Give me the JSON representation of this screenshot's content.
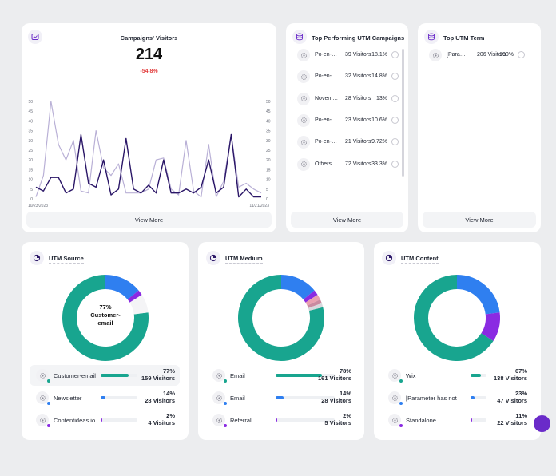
{
  "colors": {
    "accent": "#6a2bc9",
    "teal": "#18a58f",
    "blue": "#2f7ff0",
    "purple": "#8a2be2",
    "negative": "#e23b3b",
    "line_dark": "#2a1667",
    "line_light": "#b9b0d6"
  },
  "campaign_visitors": {
    "title": "Campaigns' Visitors",
    "total": "214",
    "change": "-54.8%",
    "icon": "chart-icon",
    "y_ticks_left": [
      "50",
      "45",
      "40",
      "35",
      "30",
      "25",
      "20",
      "15",
      "10",
      "5",
      "0"
    ],
    "y_ticks_right": [
      "50",
      "45",
      "40",
      "35",
      "30",
      "25",
      "20",
      "15",
      "10",
      "5",
      "0"
    ],
    "x_start_label": "10/23/2023",
    "x_end_label": "11/21/2023",
    "view_more": "View More"
  },
  "chart_data": {
    "type": "line",
    "x_start": "10/23/2023",
    "x_end": "11/21/2023",
    "ylim": [
      0,
      50
    ],
    "grid": false,
    "series": [
      {
        "values": [
          6,
          4,
          11,
          11,
          3,
          5,
          33,
          8,
          6,
          20,
          2,
          5,
          31,
          5,
          3,
          7,
          3,
          20,
          3,
          3,
          5,
          3,
          6,
          20,
          3,
          6,
          33,
          1,
          5,
          1,
          1
        ]
      },
      {
        "values": [
          1,
          12,
          50,
          28,
          20,
          30,
          4,
          3,
          35,
          16,
          12,
          18,
          3,
          3,
          3,
          5,
          20,
          21,
          5,
          2,
          30,
          4,
          1,
          28,
          1,
          9,
          33,
          6,
          8,
          5,
          3
        ]
      }
    ]
  },
  "top_utm_campaigns": {
    "title": "Top Performing UTM Campaigns",
    "icon": "database-icon",
    "rows": [
      {
        "name": "Po-en-…",
        "visitors": "39 Visitors",
        "pct": "18.1%"
      },
      {
        "name": "Po-en-…",
        "visitors": "32 Visitors",
        "pct": "14.8%"
      },
      {
        "name": "Novem…",
        "visitors": "28 Visitors",
        "pct": "13%"
      },
      {
        "name": "Po-en-…",
        "visitors": "23 Visitors",
        "pct": "10.6%"
      },
      {
        "name": "Po-en-…",
        "visitors": "21 Visitors",
        "pct": "9.72%"
      },
      {
        "name": "Others",
        "visitors": "72 Visitors",
        "pct": "33.3%"
      }
    ],
    "view_more": "View More"
  },
  "top_utm_term": {
    "title": "Top UTM Term",
    "icon": "database-icon",
    "rows": [
      {
        "name": "[Para…",
        "visitors": "206 Visitors",
        "pct": "100%"
      }
    ],
    "view_more": "View More"
  },
  "utm_source": {
    "title": "UTM Source",
    "icon": "pie-icon",
    "center_pct": "77%",
    "center_label_1": "Customer-",
    "center_label_2": "email",
    "items": [
      {
        "name": "Customer-email",
        "pct": "77%",
        "visitors": "159 Visitors",
        "share": 0.77,
        "color": "#18a58f"
      },
      {
        "name": "Newsletter",
        "pct": "14%",
        "visitors": "28 Visitors",
        "share": 0.14,
        "color": "#2f7ff0"
      },
      {
        "name": "Contentideas.io",
        "pct": "2%",
        "visitors": "4 Visitors",
        "share": 0.02,
        "color": "#8a2be2"
      }
    ]
  },
  "utm_medium": {
    "title": "UTM Medium",
    "icon": "pie-icon",
    "items": [
      {
        "name": "Email",
        "pct": "78%",
        "visitors": "161 Visitors",
        "share": 0.78,
        "color": "#18a58f"
      },
      {
        "name": "Email",
        "pct": "14%",
        "visitors": "28 Visitors",
        "share": 0.14,
        "color": "#2f7ff0"
      },
      {
        "name": "Referral",
        "pct": "2%",
        "visitors": "5 Visitors",
        "share": 0.02,
        "color": "#8a2be2"
      }
    ]
  },
  "utm_content": {
    "title": "UTM Content",
    "icon": "pie-icon",
    "items": [
      {
        "name": "Wix",
        "pct": "67%",
        "visitors": "138 Visitors",
        "share": 0.67,
        "color": "#18a58f"
      },
      {
        "name": "[Parameter has not bee",
        "pct": "23%",
        "visitors": "47 Visitors",
        "share": 0.23,
        "color": "#2f7ff0"
      },
      {
        "name": "Standalone",
        "pct": "11%",
        "visitors": "22 Visitors",
        "share": 0.11,
        "color": "#8a2be2"
      }
    ]
  }
}
